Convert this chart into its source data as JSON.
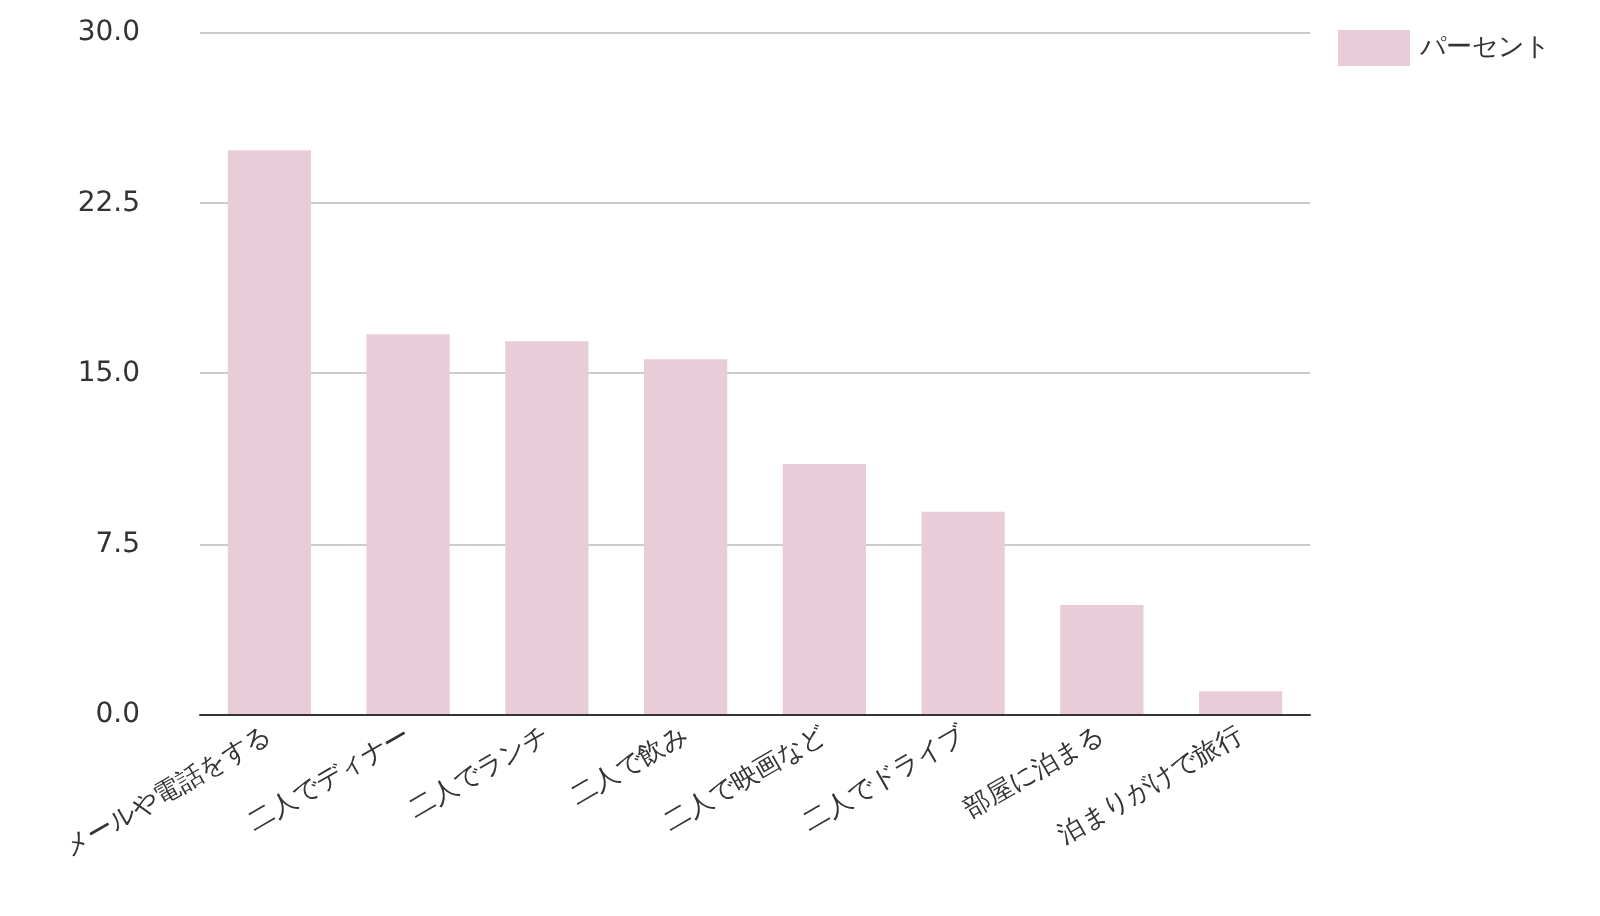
{
  "chart_data": {
    "type": "bar",
    "categories": [
      "メールや電話をする",
      "二人でディナー",
      "二人でランチ",
      "二人で飲み",
      "二人で映画など",
      "二人でドライブ",
      "部屋に泊まる",
      "泊まりがけで旅行"
    ],
    "series": [
      {
        "name": "パーセント",
        "color": "#e8cdd9",
        "values": [
          24.8,
          16.7,
          16.4,
          15.6,
          11.0,
          8.9,
          4.8,
          1.0
        ]
      }
    ],
    "ylim": [
      0,
      30
    ],
    "yticks": [
      {
        "value": 0,
        "label": "0.0"
      },
      {
        "value": 7.5,
        "label": "7.5"
      },
      {
        "value": 15,
        "label": "15.0"
      },
      {
        "value": 22.5,
        "label": "22.5"
      },
      {
        "value": 30,
        "label": "30.0"
      }
    ],
    "grid": "y",
    "legend": "top right"
  }
}
